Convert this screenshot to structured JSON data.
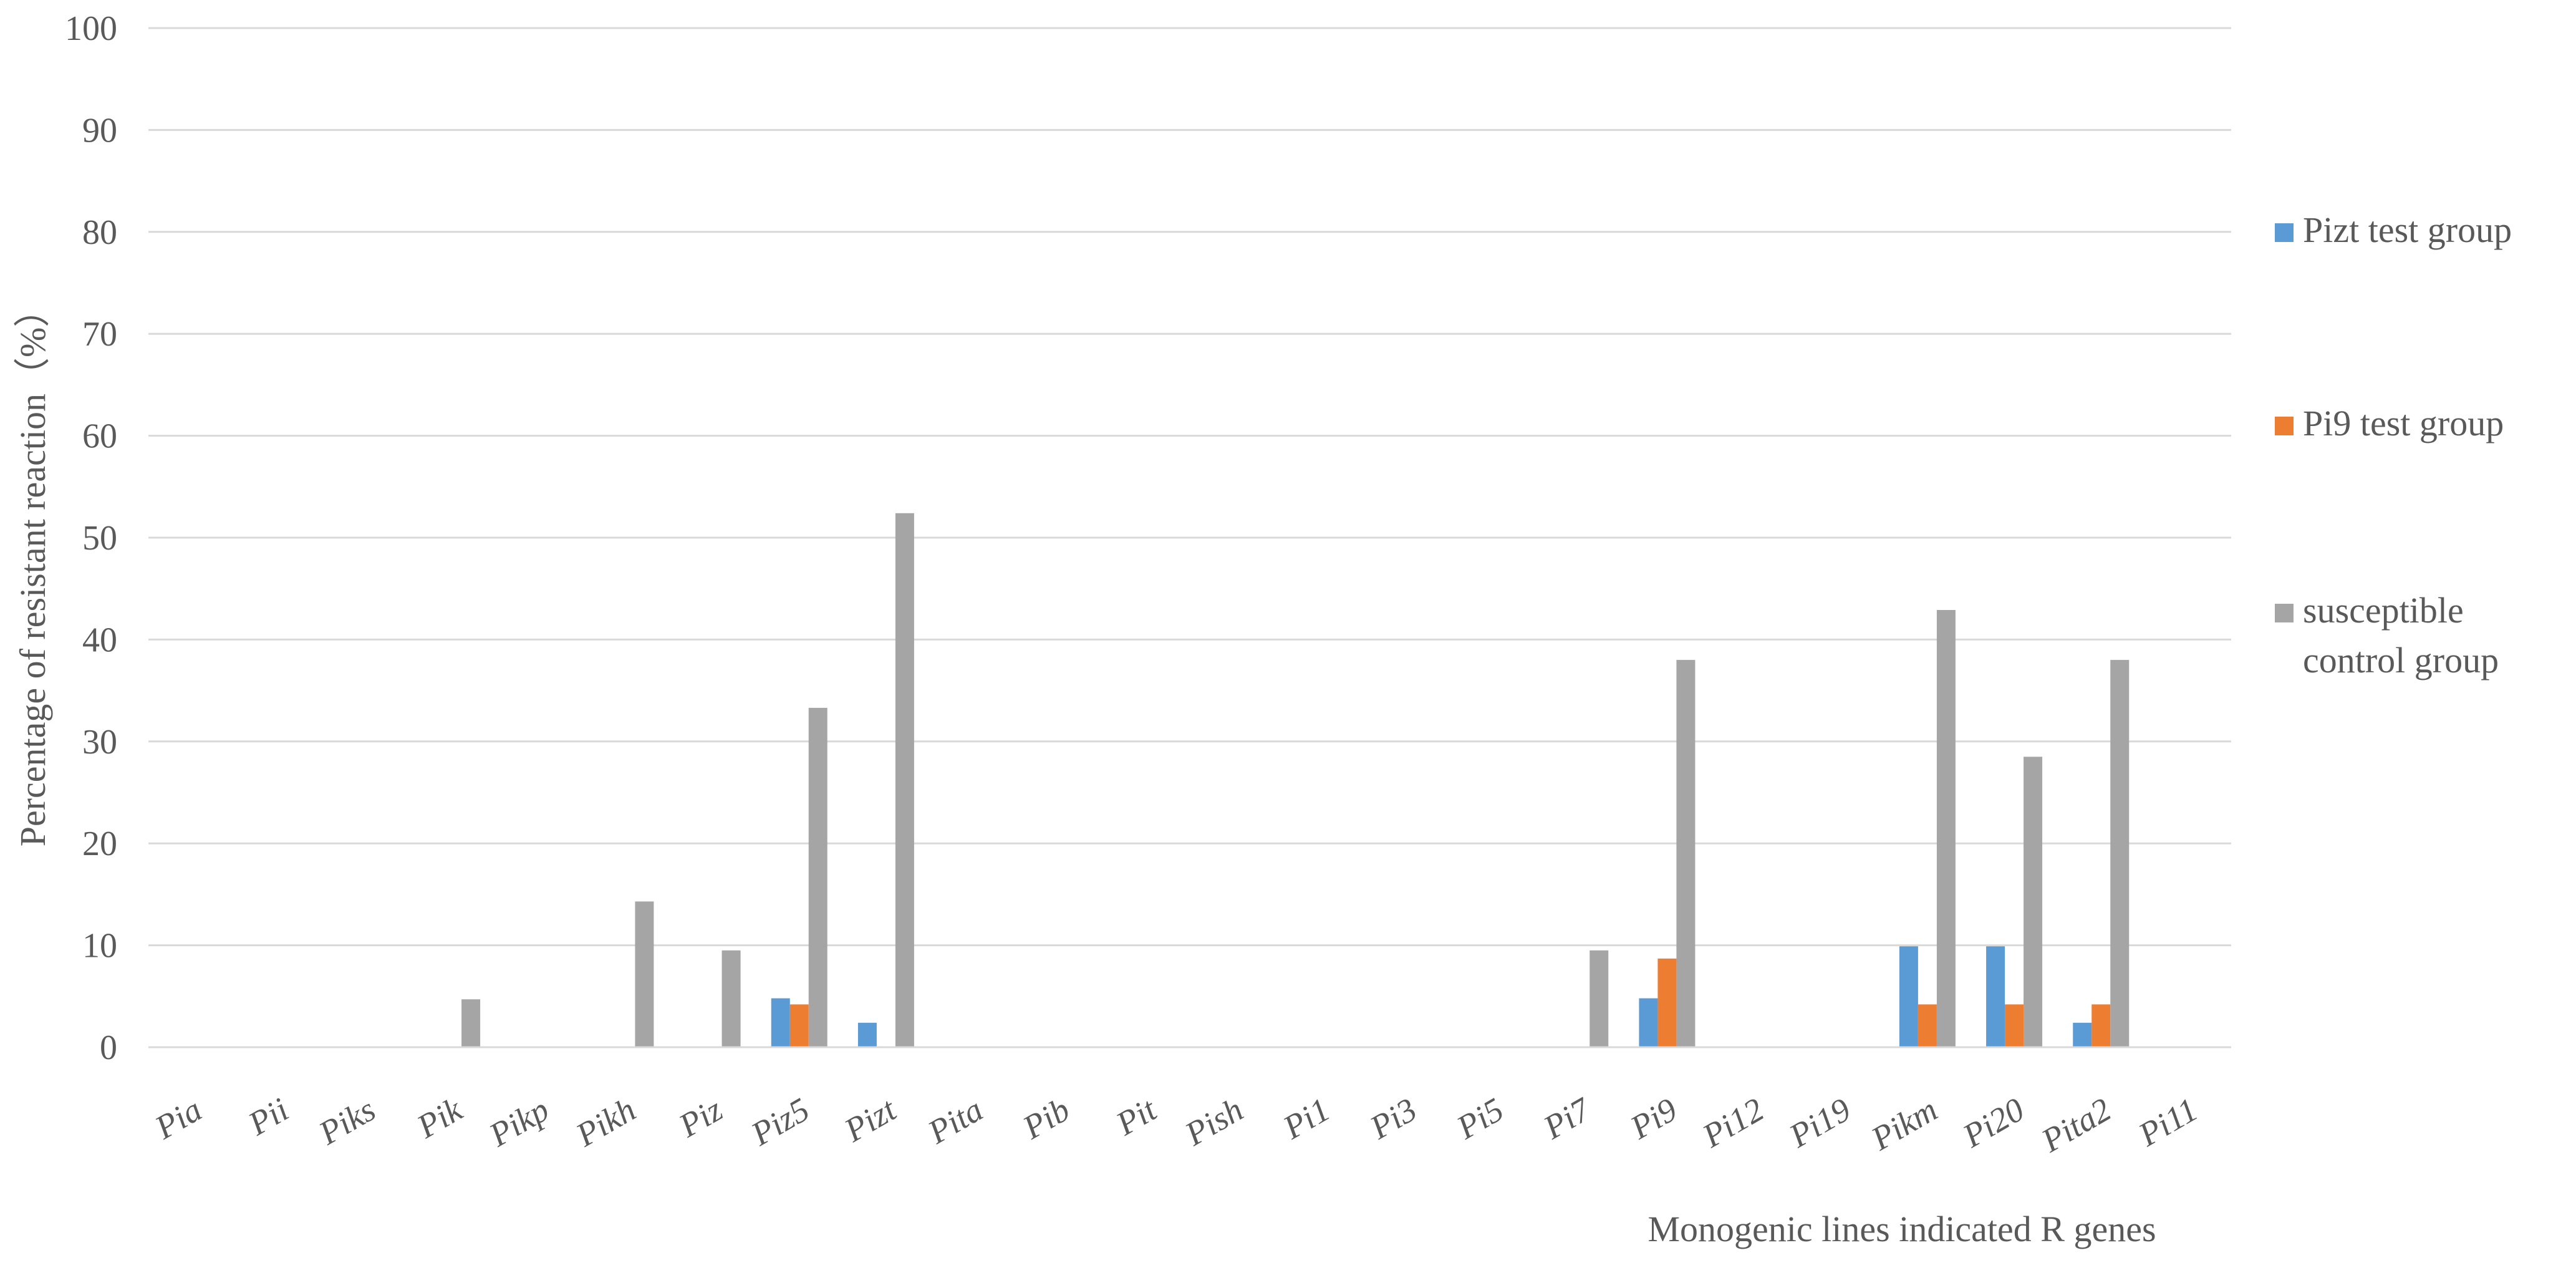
{
  "chart_data": {
    "type": "bar",
    "title": "",
    "xlabel": "Monogenic lines indicated R genes",
    "ylabel": "Percentage of resistant reaction（%）",
    "ylim": [
      0,
      100
    ],
    "yticks": [
      0,
      10,
      20,
      30,
      40,
      50,
      60,
      70,
      80,
      90,
      100
    ],
    "grid": true,
    "legend_position": "right",
    "categories": [
      "Pia",
      "Pii",
      "Piks",
      "Pik",
      "Pikp",
      "Pikh",
      "Piz",
      "Piz5",
      "Pizt",
      "Pita",
      "Pib",
      "Pit",
      "Pish",
      "Pi1",
      "Pi3",
      "Pi5",
      "Pi7",
      "Pi9",
      "Pi12",
      "Pi19",
      "Pikm",
      "Pi20",
      "Pita2",
      "Pi11"
    ],
    "series": [
      {
        "name": "Pizt test group",
        "color": "#5B9BD5",
        "values": [
          0,
          0,
          0,
          0,
          0,
          0,
          0,
          4.8,
          2.4,
          0,
          0,
          0,
          0,
          0,
          0,
          0,
          0,
          4.8,
          0,
          0,
          9.9,
          9.9,
          2.4,
          0
        ]
      },
      {
        "name": "Pi9 test group",
        "color": "#ED7D31",
        "values": [
          0,
          0,
          0,
          0,
          0,
          0,
          0,
          4.2,
          0,
          0,
          0,
          0,
          0,
          0,
          0,
          0,
          0,
          8.7,
          0,
          0,
          4.2,
          4.2,
          4.2,
          0
        ]
      },
      {
        "name": "susceptible control group",
        "legend_lines": [
          "susceptible",
          "control group"
        ],
        "color": "#A5A5A5",
        "values": [
          0,
          0,
          0,
          4.7,
          0,
          14.3,
          9.5,
          33.3,
          52.4,
          0,
          0,
          0,
          0,
          0,
          0,
          0,
          9.5,
          38.0,
          0,
          0,
          42.9,
          28.5,
          38.0,
          0
        ]
      }
    ]
  }
}
